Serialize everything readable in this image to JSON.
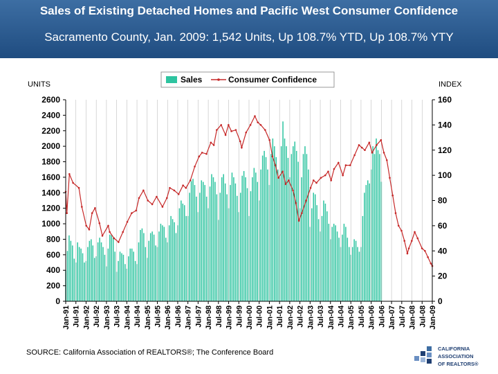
{
  "header": {
    "title": "Sales of Existing Detached Homes and Pacific West Consumer Confidence",
    "subtitle": "Sacramento County, Jan. 2009: 1,542 Units, Up 108.7% YTD, Up 108.7% YTY"
  },
  "source": "SOURCE: California Association of REALTORS®; The Conference Board",
  "logo": {
    "line1": "CALIFORNIA",
    "line2": "ASSOCIATION",
    "line3": "OF REALTORS®"
  },
  "chart_data": {
    "type": "bar",
    "left_axis_label": "UNITS",
    "right_axis_label": "INDEX",
    "left_ylim": [
      0,
      2600
    ],
    "left_ticks": [
      "0",
      "200",
      "400",
      "600",
      "800",
      "1000",
      "1200",
      "1400",
      "1600",
      "1800",
      "2000",
      "2200",
      "2400",
      "2600"
    ],
    "right_ylim": [
      0,
      160
    ],
    "right_ticks": [
      "0",
      "20",
      "40",
      "60",
      "80",
      "100",
      "120",
      "140",
      "160"
    ],
    "legend": {
      "sales": "Sales",
      "confidence": "Consumer Confidence",
      "placement": "top-center"
    },
    "colors": {
      "bars": "#2ec4a0",
      "line": "#c62828"
    },
    "x_tick_labels": [
      "Jan-91",
      "Jul-91",
      "Jan-92",
      "Jul-92",
      "Jan-93",
      "Jul-93",
      "Jan-94",
      "Jul-94",
      "Jan-95",
      "Jul-95",
      "Jan-96",
      "Jul-96",
      "Jan-97",
      "Jul-97",
      "Jan-98",
      "Jul-98",
      "Jan-99",
      "Jul-99",
      "Jan-00",
      "Jul-00",
      "Jan-01",
      "Jul-01",
      "Jan-02",
      "Jul-02",
      "Jan-03",
      "Jul-03",
      "Jan-04",
      "Jul-04",
      "Jan-05",
      "Jul-05",
      "Jan-06",
      "Jul-06",
      "Jan-07",
      "Jul-07",
      "Jan-08",
      "Jul-08",
      "Jan-09"
    ],
    "sales_half_year": [
      [
        400,
        650,
        850,
        780,
        720,
        550
      ],
      [
        500,
        760,
        700,
        680,
        620,
        500
      ],
      [
        520,
        700,
        780,
        800,
        720,
        560
      ],
      [
        580,
        760,
        820,
        760,
        700,
        600
      ],
      [
        450,
        680,
        860,
        860,
        820,
        640
      ],
      [
        380,
        520,
        640,
        620,
        600,
        480
      ],
      [
        420,
        580,
        680,
        680,
        640,
        520
      ],
      [
        480,
        760,
        920,
        940,
        880,
        700
      ],
      [
        560,
        780,
        880,
        900,
        860,
        720
      ],
      [
        700,
        900,
        1000,
        980,
        960,
        820
      ],
      [
        760,
        980,
        1100,
        1060,
        1020,
        880
      ],
      [
        980,
        1200,
        1300,
        1260,
        1240,
        1100
      ],
      [
        1100,
        1400,
        1550,
        1580,
        1500,
        1350
      ],
      [
        1150,
        1400,
        1560,
        1540,
        1500,
        1350
      ],
      [
        1200,
        1480,
        1640,
        1600,
        1540,
        1380
      ],
      [
        1050,
        1400,
        1600,
        1640,
        1520,
        1380
      ],
      [
        1200,
        1500,
        1660,
        1600,
        1520,
        1360
      ],
      [
        1150,
        1400,
        1620,
        1680,
        1600,
        1460
      ],
      [
        1100,
        1420,
        1600,
        1720,
        1660,
        1540
      ],
      [
        1300,
        1700,
        1880,
        1940,
        1860,
        1700
      ],
      [
        1500,
        1900,
        2100,
        2000,
        1860,
        1700
      ],
      [
        1600,
        2000,
        2320,
        2100,
        2000,
        1850
      ],
      [
        1600,
        1900,
        2000,
        2060,
        1940,
        1800
      ],
      [
        1200,
        1600,
        1900,
        2000,
        1900,
        1700
      ],
      [
        960,
        1200,
        1400,
        1380,
        1240,
        1060
      ],
      [
        900,
        1100,
        1300,
        1260,
        1160,
        1000
      ],
      [
        800,
        960,
        1000,
        980,
        900,
        820
      ],
      [
        700,
        860,
        1000,
        960,
        820,
        700
      ],
      [
        600,
        700,
        800,
        780,
        700,
        640
      ],
      [
        700,
        1100,
        1400,
        1500,
        1560,
        1520
      ],
      [
        1700,
        2000,
        1900,
        2100,
        1950,
        1900
      ],
      [
        1542
      ]
    ],
    "confidence_points": [
      [
        1991.0,
        87
      ],
      [
        1991.08,
        70
      ],
      [
        1991.25,
        101
      ],
      [
        1991.5,
        94
      ],
      [
        1991.9,
        90
      ],
      [
        1992.1,
        75
      ],
      [
        1992.4,
        60
      ],
      [
        1992.6,
        57
      ],
      [
        1992.8,
        70
      ],
      [
        1993.0,
        74
      ],
      [
        1993.3,
        62
      ],
      [
        1993.5,
        52
      ],
      [
        1993.9,
        60
      ],
      [
        1994.0,
        55
      ],
      [
        1994.3,
        50
      ],
      [
        1994.6,
        47
      ],
      [
        1994.9,
        55
      ],
      [
        1995.2,
        63
      ],
      [
        1995.5,
        70
      ],
      [
        1995.8,
        72
      ],
      [
        1996.0,
        82
      ],
      [
        1996.3,
        88
      ],
      [
        1996.6,
        80
      ],
      [
        1996.9,
        77
      ],
      [
        1997.2,
        83
      ],
      [
        1997.6,
        75
      ],
      [
        1997.9,
        82
      ],
      [
        1998.1,
        90
      ],
      [
        1998.4,
        88
      ],
      [
        1998.7,
        85
      ],
      [
        1999.0,
        92
      ],
      [
        1999.2,
        90
      ],
      [
        1999.5,
        96
      ],
      [
        1999.8,
        107
      ],
      [
        2000.1,
        115
      ],
      [
        2000.3,
        118
      ],
      [
        2000.6,
        117
      ],
      [
        2000.9,
        126
      ],
      [
        2001.1,
        124
      ],
      [
        2001.3,
        136
      ],
      [
        2001.6,
        140
      ],
      [
        2001.9,
        132
      ],
      [
        2002.1,
        140
      ],
      [
        2002.3,
        135
      ],
      [
        2002.6,
        136
      ],
      [
        2002.9,
        127
      ],
      [
        2003.0,
        122
      ],
      [
        2003.3,
        134
      ],
      [
        2003.6,
        140
      ],
      [
        2003.9,
        147
      ],
      [
        2004.1,
        142
      ],
      [
        2004.3,
        140
      ],
      [
        2004.6,
        136
      ],
      [
        2004.9,
        128
      ],
      [
        2005.1,
        115
      ],
      [
        2005.3,
        108
      ],
      [
        2005.5,
        98
      ],
      [
        2005.8,
        103
      ],
      [
        2006.0,
        93
      ],
      [
        2006.2,
        96
      ],
      [
        2006.5,
        88
      ],
      [
        2006.7,
        78
      ],
      [
        2006.9,
        64
      ],
      [
        2007.1,
        70
      ],
      [
        2007.4,
        80
      ],
      [
        2007.7,
        90
      ],
      [
        2007.9,
        96
      ],
      [
        2008.1,
        94
      ],
      [
        2008.4,
        98
      ],
      [
        2008.7,
        100
      ],
      [
        2008.9,
        103
      ],
      [
        2009.1,
        96
      ],
      [
        2009.3,
        105
      ],
      [
        2009.6,
        110
      ],
      [
        2009.9,
        100
      ],
      [
        2010.1,
        108
      ],
      [
        2010.4,
        108
      ],
      [
        2010.7,
        116
      ],
      [
        2011.0,
        124
      ],
      [
        2011.2,
        122
      ],
      [
        2011.4,
        120
      ],
      [
        2011.7,
        126
      ],
      [
        2011.9,
        118
      ],
      [
        2012.2,
        124
      ],
      [
        2012.5,
        128
      ],
      [
        2012.7,
        118
      ],
      [
        2012.9,
        112
      ],
      [
        2013.1,
        98
      ],
      [
        2013.3,
        84
      ],
      [
        2013.5,
        70
      ],
      [
        2013.7,
        60
      ],
      [
        2013.9,
        56
      ],
      [
        2014.1,
        48
      ],
      [
        2014.3,
        38
      ],
      [
        2014.4,
        42
      ],
      [
        2014.6,
        48
      ],
      [
        2014.8,
        55
      ],
      [
        2015.0,
        50
      ],
      [
        2015.3,
        42
      ],
      [
        2015.5,
        40
      ],
      [
        2015.7,
        35
      ],
      [
        2015.9,
        30
      ],
      [
        2016.0,
        28
      ]
    ]
  }
}
